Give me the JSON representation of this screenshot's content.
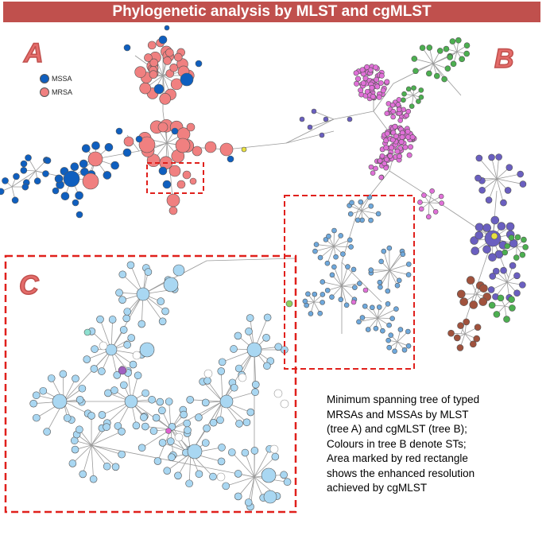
{
  "title": "Phylogenetic analysis by MLST and cgMLST",
  "panels": {
    "a": "A",
    "b": "B",
    "c": "C"
  },
  "legend": [
    {
      "label": "MSSA",
      "color": "#0f5fbf"
    },
    {
      "label": "MRSA",
      "color": "#f08080"
    }
  ],
  "caption_lines": [
    "Minimum spanning tree of typed",
    "MRSAs and MSSAs by MLST",
    "(tree A) and cgMLST (tree B);",
    "Colours in tree B denote STs;",
    "Area marked by red rectangle",
    "shows the enhanced resolution",
    "achieved by cgMLST"
  ],
  "colors": {
    "banner": "#c0504d",
    "highlight_box": "#e0201c",
    "mssa": "#0f5fbf",
    "mrsa": "#f08080",
    "cgmlst_node": "#a9d7f2",
    "st_pink": "#e070d8",
    "st_green": "#4caf50",
    "st_purple": "#6a5fc0",
    "st_brown": "#a0523d",
    "st_blue": "#6ea8dc"
  }
}
